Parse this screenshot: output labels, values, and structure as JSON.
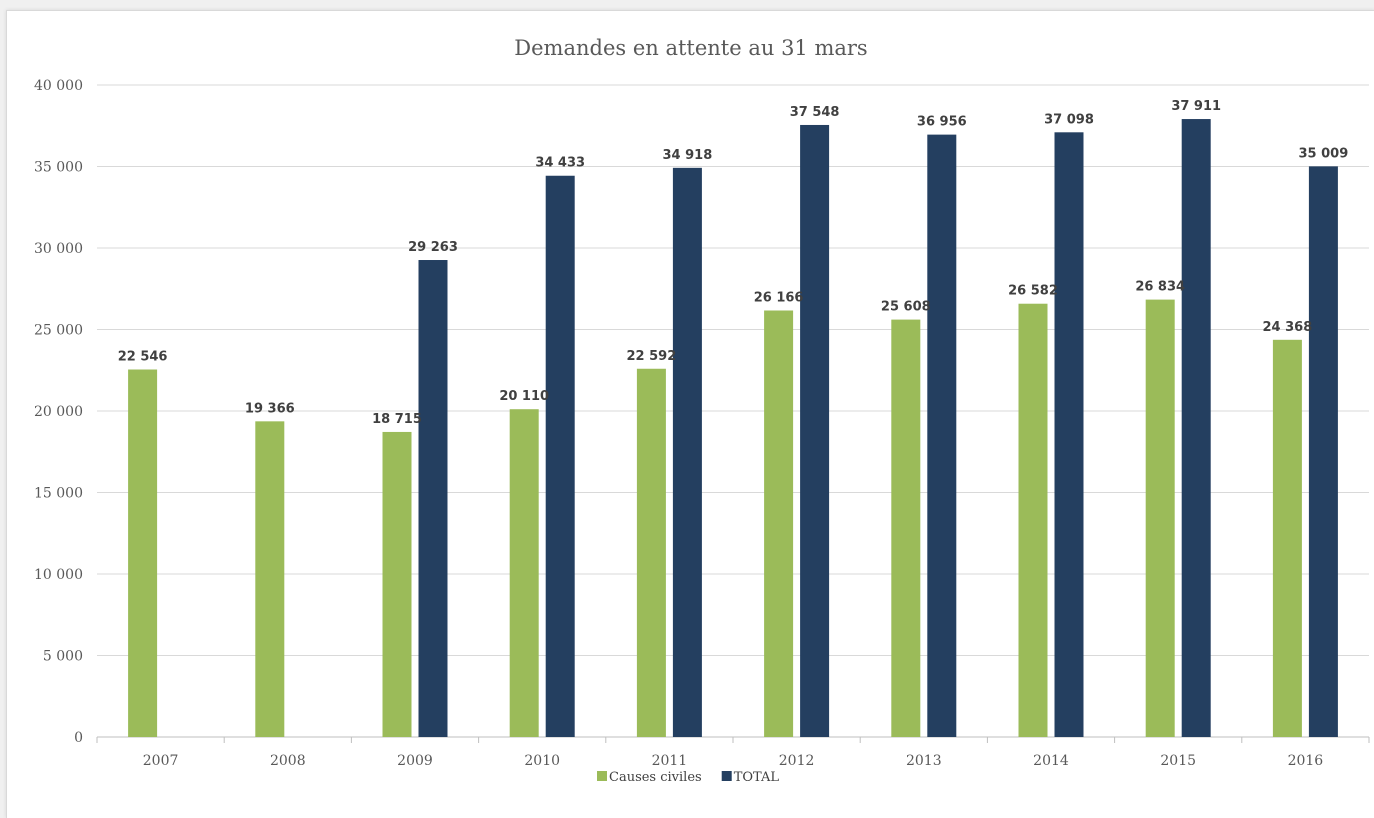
{
  "chart_data": {
    "type": "bar",
    "title": "Demandes en attente au 31 mars",
    "xlabel": "",
    "ylabel": "",
    "categories": [
      "2007",
      "2008",
      "2009",
      "2010",
      "2011",
      "2012",
      "2013",
      "2014",
      "2015",
      "2016"
    ],
    "series": [
      {
        "name": "Causes civiles",
        "color": "#9bbb59",
        "values": [
          22546,
          19366,
          18715,
          20110,
          22592,
          26166,
          25608,
          26582,
          26834,
          24368
        ],
        "labels": [
          "22 546",
          "19 366",
          "18 715",
          "20 110",
          "22 592",
          "26 166",
          "25 608",
          "26 582",
          "26 834",
          "24 368"
        ]
      },
      {
        "name": "TOTAL",
        "color": "#243f60",
        "values": [
          null,
          null,
          29263,
          34433,
          34918,
          37548,
          36956,
          37098,
          37911,
          35009
        ],
        "labels": [
          "",
          "",
          "29 263",
          "34 433",
          "34 918",
          "37 548",
          "36 956",
          "37 098",
          "37 911",
          "35 009"
        ]
      }
    ],
    "ylim": [
      0,
      40000
    ],
    "yticks": [
      0,
      5000,
      10000,
      15000,
      20000,
      25000,
      30000,
      35000,
      40000
    ],
    "ytick_labels": [
      "0",
      "5 000",
      "10 000",
      "15 000",
      "20 000",
      "25 000",
      "30 000",
      "35 000",
      "40 000"
    ],
    "grid": true,
    "legend": "bottom"
  }
}
